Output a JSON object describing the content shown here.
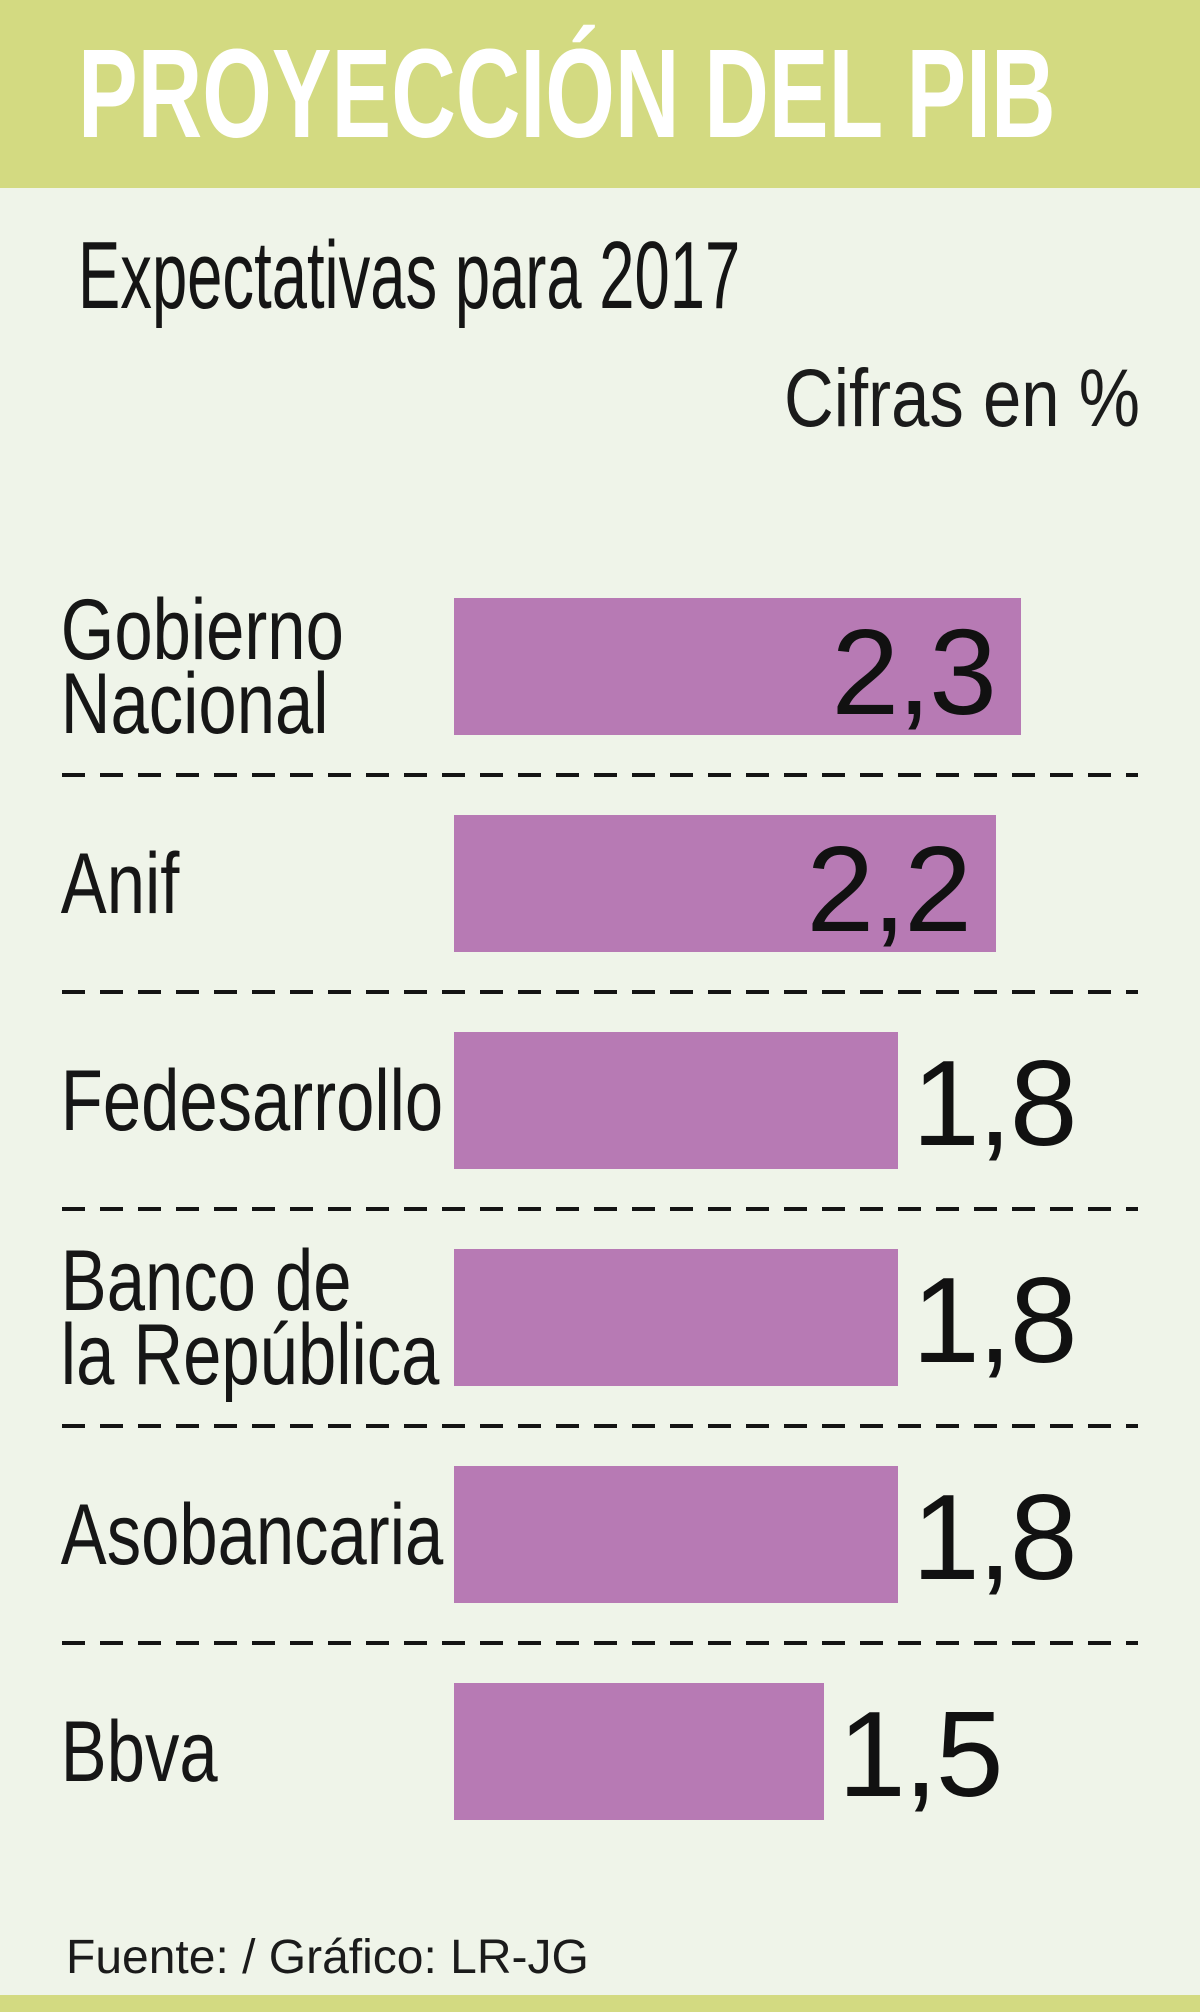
{
  "header": {
    "title": "PROYECCIÓN DEL PIB",
    "band_color": "#d3da81",
    "text_color": "#ffffff"
  },
  "subtitle": "Expectativas para 2017",
  "units_note": "Cifras en %",
  "footer": {
    "source": "Fuente: / Gráfico: LR-JG"
  },
  "colors": {
    "background": "#eff4e9",
    "bar": "#b77ab4",
    "text": "#161616",
    "separator": "#141414",
    "accent_green": "#d3da81"
  },
  "chart_data": {
    "type": "bar",
    "orientation": "horizontal",
    "title": "PROYECCIÓN DEL PIB",
    "subtitle": "Expectativas para 2017",
    "units": "%",
    "categories": [
      "Gobierno Nacional",
      "Anif",
      "Fedesarrollo",
      "Banco de la República",
      "Asobancaria",
      "Bbva"
    ],
    "values": [
      2.3,
      2.2,
      1.8,
      1.8,
      1.8,
      1.5
    ],
    "value_labels": [
      "2,3",
      "2,2",
      "1,8",
      "1,8",
      "1,8",
      "1,5"
    ],
    "label_lines": [
      [
        "Gobierno",
        "Nacional"
      ],
      [
        "Anif"
      ],
      [
        "Fedesarrollo"
      ],
      [
        "Banco de",
        "la República"
      ],
      [
        "Asobancaria"
      ],
      [
        "Bbva"
      ]
    ],
    "value_inside": [
      true,
      true,
      false,
      false,
      false,
      false
    ],
    "xlim": [
      0,
      2.5
    ],
    "grid": false,
    "legend": false,
    "bar_color": "#b77ab4",
    "separator_style": "dashed"
  }
}
